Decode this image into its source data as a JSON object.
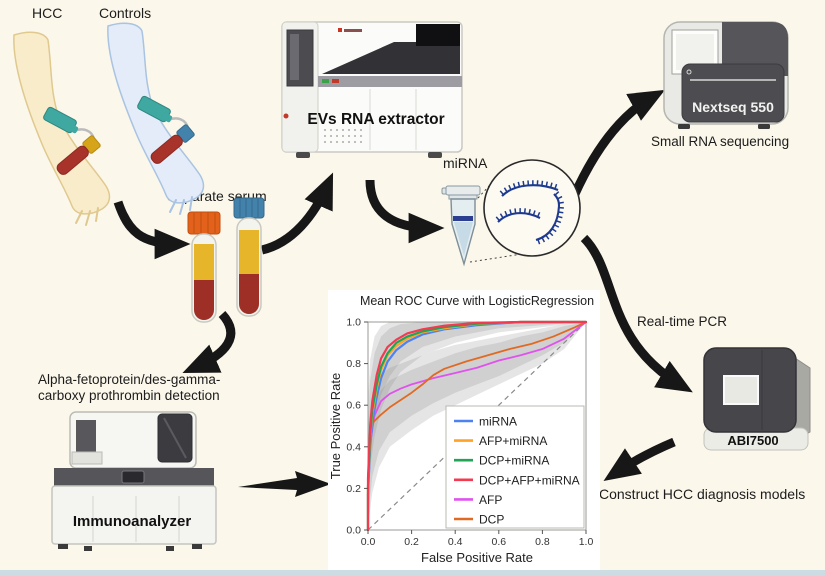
{
  "figure": {
    "background_color": "#FBF7EB",
    "footer_strip_color": "#CBDCE2"
  },
  "labels": {
    "hcc": "HCC",
    "controls": "Controls",
    "separate_serum": "Separate serum",
    "evs_extractor": "EVs RNA extractor",
    "mirna": "miRNA",
    "nextseq": "Nextseq 550",
    "small_rna_sequencing": "Small RNA sequencing",
    "realtime_pcr": "Real-time PCR",
    "abi7500": "ABI7500",
    "construct_models": "Construct HCC diagnosis models",
    "afp_dcp_detection_line1": "Alpha-fetoprotein/des-gamma-",
    "afp_dcp_detection_line2": "carboxy prothrombin detection",
    "immunoanalyzer": "Immunoanalyzer"
  },
  "chart_data": {
    "type": "line",
    "title": "Mean ROC Curve with LogisticRegression",
    "xlabel": "False Positive Rate",
    "ylabel": "True Positive Rate",
    "xlim": [
      0,
      1
    ],
    "ylim": [
      0,
      1
    ],
    "xticks": [
      0.0,
      0.2,
      0.4,
      0.6,
      0.8,
      1.0
    ],
    "yticks": [
      0.0,
      0.2,
      0.4,
      0.6,
      0.8,
      1.0
    ],
    "grid": false,
    "diagonal_reference": true,
    "legend_position": "lower right",
    "series": [
      {
        "name": "miRNA",
        "color": "#4d82f0",
        "width": 2.2,
        "x": [
          0,
          0,
          0.01,
          0.02,
          0.04,
          0.06,
          0.09,
          0.13,
          0.18,
          0.25,
          0.35,
          0.5,
          0.7,
          1
        ],
        "y": [
          0,
          0.17,
          0.4,
          0.52,
          0.64,
          0.73,
          0.81,
          0.865,
          0.905,
          0.94,
          0.965,
          0.985,
          1,
          1
        ]
      },
      {
        "name": "AFP+miRNA",
        "color": "#ffa226",
        "width": 2.2,
        "x": [
          0,
          0,
          0.01,
          0.02,
          0.04,
          0.06,
          0.09,
          0.13,
          0.18,
          0.25,
          0.35,
          0.5,
          0.7,
          1
        ],
        "y": [
          0,
          0.2,
          0.44,
          0.56,
          0.68,
          0.77,
          0.84,
          0.885,
          0.92,
          0.95,
          0.97,
          0.99,
          1,
          1
        ]
      },
      {
        "name": "DCP+miRNA",
        "color": "#1fa555",
        "width": 2.2,
        "x": [
          0,
          0,
          0.01,
          0.02,
          0.04,
          0.06,
          0.09,
          0.13,
          0.18,
          0.25,
          0.35,
          0.5,
          0.7,
          1
        ],
        "y": [
          0,
          0.21,
          0.46,
          0.58,
          0.7,
          0.785,
          0.85,
          0.9,
          0.93,
          0.955,
          0.975,
          0.992,
          1,
          1
        ]
      },
      {
        "name": "DCP+AFP+miRNA",
        "color": "#f23a50",
        "width": 2.2,
        "x": [
          0,
          0,
          0.01,
          0.02,
          0.04,
          0.06,
          0.09,
          0.13,
          0.18,
          0.25,
          0.35,
          0.5,
          0.7,
          1
        ],
        "y": [
          0,
          0.25,
          0.5,
          0.62,
          0.745,
          0.825,
          0.88,
          0.915,
          0.945,
          0.965,
          0.982,
          0.996,
          1,
          1
        ]
      },
      {
        "name": "AFP",
        "color": "#e052ee",
        "width": 1.8,
        "x": [
          0,
          0,
          0.01,
          0.03,
          0.06,
          0.1,
          0.15,
          0.2,
          0.3,
          0.4,
          0.5,
          0.6,
          0.7,
          0.8,
          0.9,
          1
        ],
        "y": [
          0,
          0.2,
          0.42,
          0.55,
          0.62,
          0.655,
          0.68,
          0.7,
          0.73,
          0.755,
          0.78,
          0.815,
          0.84,
          0.87,
          0.92,
          1
        ]
      },
      {
        "name": "DCP",
        "color": "#e06a24",
        "width": 1.8,
        "x": [
          0,
          0,
          0.01,
          0.03,
          0.06,
          0.1,
          0.15,
          0.2,
          0.25,
          0.3,
          0.35,
          0.45,
          0.55,
          0.65,
          0.75,
          0.85,
          0.95,
          1
        ],
        "y": [
          0,
          0.25,
          0.5,
          0.525,
          0.555,
          0.59,
          0.625,
          0.66,
          0.7,
          0.745,
          0.775,
          0.81,
          0.84,
          0.87,
          0.895,
          0.93,
          0.975,
          1
        ]
      }
    ],
    "bands": [
      {
        "color": "#8a8a8a",
        "opacity": 0.22,
        "x": [
          0,
          0.01,
          0.03,
          0.06,
          0.1,
          0.15,
          0.25,
          0.4,
          0.6,
          1
        ],
        "upper": [
          0.62,
          0.82,
          0.93,
          0.98,
          1,
          1,
          1,
          1,
          1,
          1
        ],
        "lower": [
          0.05,
          0.3,
          0.45,
          0.58,
          0.68,
          0.76,
          0.84,
          0.9,
          0.95,
          1
        ]
      },
      {
        "color": "#8a8a8a",
        "opacity": 0.22,
        "x": [
          0,
          0.01,
          0.03,
          0.06,
          0.1,
          0.15,
          0.25,
          0.4,
          0.6,
          1
        ],
        "upper": [
          0.5,
          0.72,
          0.85,
          0.93,
          0.97,
          0.99,
          1,
          1,
          1,
          1
        ],
        "lower": [
          0.12,
          0.38,
          0.53,
          0.65,
          0.74,
          0.81,
          0.88,
          0.93,
          0.97,
          1
        ]
      },
      {
        "color": "#8a8a8a",
        "opacity": 0.22,
        "x": [
          0,
          0.02,
          0.05,
          0.1,
          0.2,
          0.3,
          0.4,
          0.5,
          0.6,
          0.7,
          0.8,
          0.9,
          1
        ],
        "upper": [
          0.5,
          0.66,
          0.74,
          0.78,
          0.82,
          0.86,
          0.89,
          0.91,
          0.93,
          0.95,
          0.97,
          0.99,
          1
        ],
        "lower": [
          0.02,
          0.18,
          0.3,
          0.4,
          0.48,
          0.55,
          0.6,
          0.65,
          0.7,
          0.75,
          0.8,
          0.87,
          1
        ]
      },
      {
        "color": "#8a8a8a",
        "opacity": 0.22,
        "x": [
          0,
          0.02,
          0.05,
          0.1,
          0.2,
          0.3,
          0.4,
          0.5,
          0.6,
          0.7,
          0.8,
          0.9,
          1
        ],
        "upper": [
          0.4,
          0.58,
          0.66,
          0.72,
          0.77,
          0.81,
          0.85,
          0.88,
          0.9,
          0.93,
          0.95,
          0.98,
          1
        ],
        "lower": [
          0.06,
          0.26,
          0.38,
          0.47,
          0.55,
          0.61,
          0.66,
          0.7,
          0.74,
          0.79,
          0.84,
          0.9,
          1
        ]
      }
    ]
  }
}
